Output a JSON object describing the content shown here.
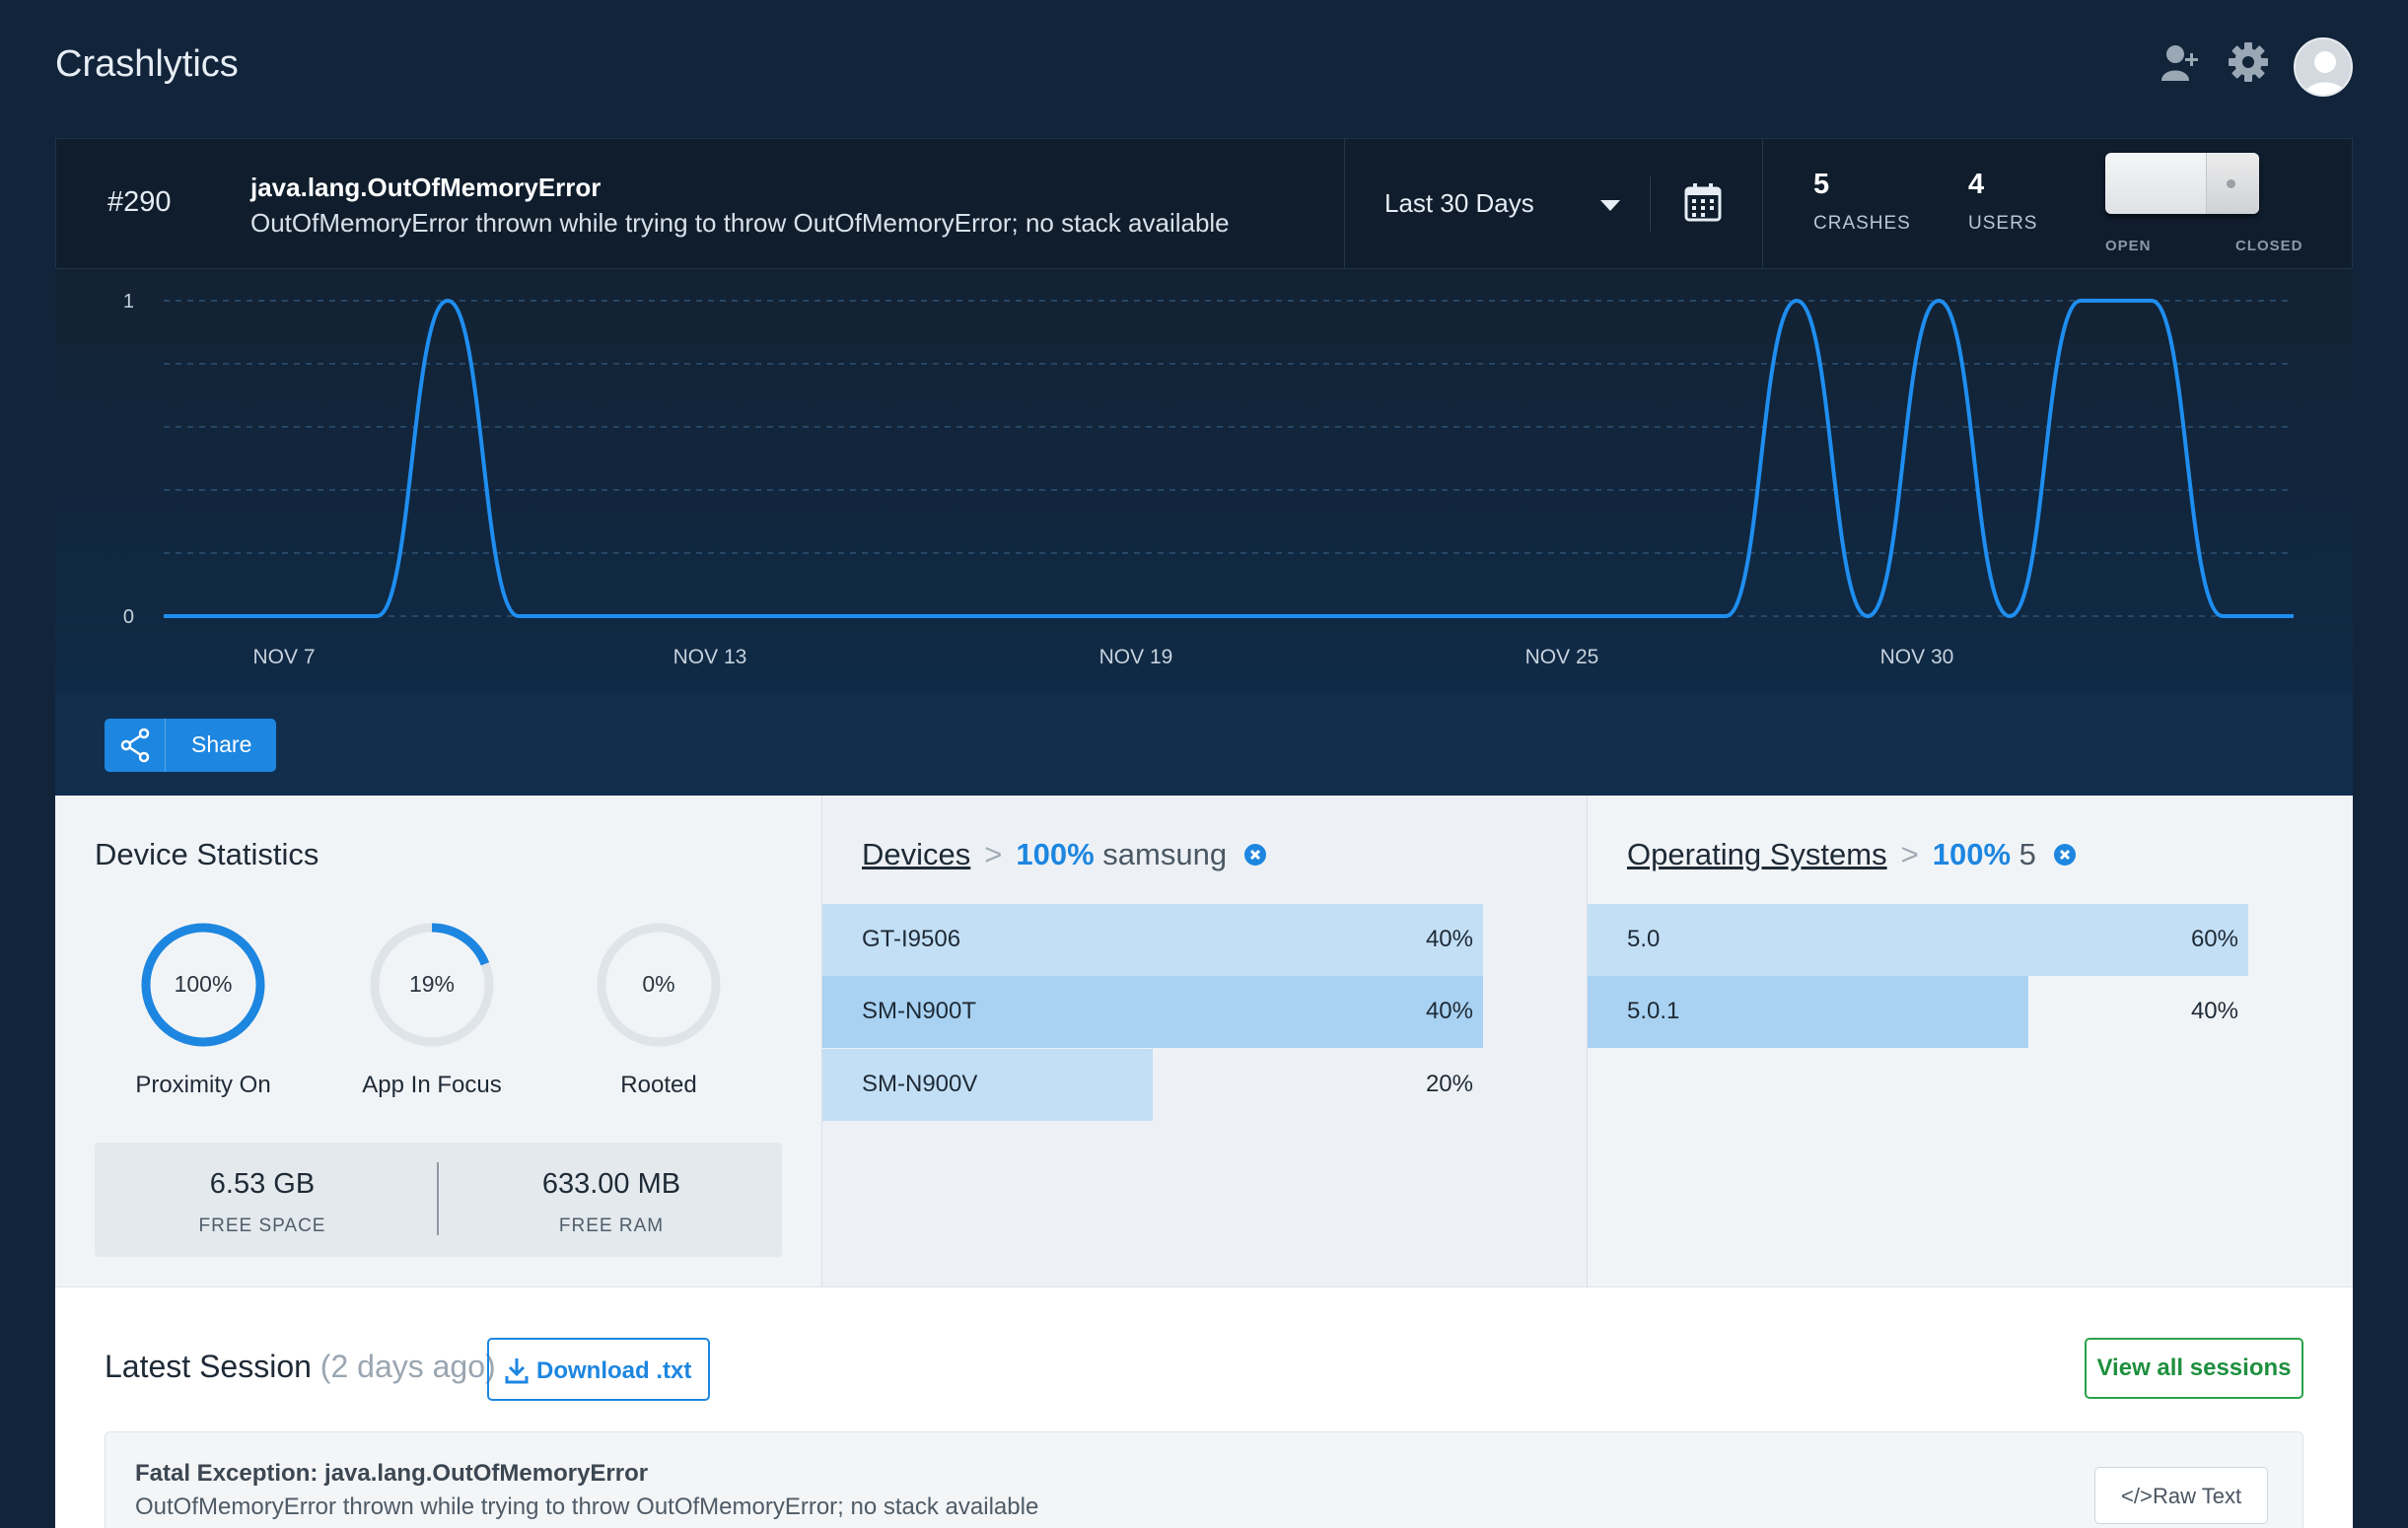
{
  "app": {
    "title": "Crashlytics"
  },
  "header_icons": [
    "add-user-icon",
    "gear-icon",
    "avatar"
  ],
  "issue": {
    "number": "#290",
    "title": "java.lang.OutOfMemoryError",
    "subtitle": "OutOfMemoryError thrown while trying to throw OutOfMemoryError; no stack available",
    "date_range": "Last 30 Days",
    "crashes_value": "5",
    "crashes_label": "CRASHES",
    "users_value": "4",
    "users_label": "USERS",
    "toggle_open_label": "OPEN",
    "toggle_closed_label": "CLOSED",
    "status_state": "closed"
  },
  "chart_data": {
    "type": "line",
    "x_ticks": [
      "NOV 7",
      "NOV 13",
      "NOV 19",
      "NOV 25",
      "NOV 30"
    ],
    "y_ticks": [
      "0",
      "1"
    ],
    "ylim": [
      0,
      1
    ],
    "grid": true,
    "series": [
      {
        "color": "#1f8ef0",
        "points": [
          [
            "Nov 5",
            0
          ],
          [
            "Nov 6",
            0
          ],
          [
            "Nov 7",
            0
          ],
          [
            "Nov 8",
            0
          ],
          [
            "Nov 9",
            1
          ],
          [
            "Nov 10",
            0
          ],
          [
            "Nov 11",
            0
          ],
          [
            "Nov 12",
            0
          ],
          [
            "Nov 13",
            0
          ],
          [
            "Nov 14",
            0
          ],
          [
            "Nov 15",
            0
          ],
          [
            "Nov 16",
            0
          ],
          [
            "Nov 17",
            0
          ],
          [
            "Nov 18",
            0
          ],
          [
            "Nov 19",
            0
          ],
          [
            "Nov 20",
            0
          ],
          [
            "Nov 21",
            0
          ],
          [
            "Nov 22",
            0
          ],
          [
            "Nov 23",
            0
          ],
          [
            "Nov 24",
            0
          ],
          [
            "Nov 25",
            0
          ],
          [
            "Nov 26",
            0
          ],
          [
            "Nov 27",
            0
          ],
          [
            "Nov 28",
            1
          ],
          [
            "Nov 29",
            0
          ],
          [
            "Nov 30",
            1
          ],
          [
            "Dec 1",
            0
          ],
          [
            "Dec 2",
            1
          ],
          [
            "Dec 3",
            1
          ],
          [
            "Dec 4",
            0
          ],
          [
            "Dec 5",
            0
          ]
        ]
      }
    ]
  },
  "share": {
    "label": "Share"
  },
  "device_stats": {
    "title": "Device Statistics",
    "rings": [
      {
        "value": "100%",
        "fraction": 1.0,
        "label": "Proximity On"
      },
      {
        "value": "19%",
        "fraction": 0.19,
        "label": "App In Focus"
      },
      {
        "value": "0%",
        "fraction": 0.0,
        "label": "Rooted"
      }
    ],
    "free_space_value": "6.53 GB",
    "free_space_label": "FREE SPACE",
    "free_ram_value": "633.00 MB",
    "free_ram_label": "FREE RAM"
  },
  "devices": {
    "title": "Devices",
    "separator": ">",
    "filter_pct": "100%",
    "filter_value": "samsung",
    "rows": [
      {
        "name": "GT-I9506",
        "pct": "40%",
        "fraction": 1.0,
        "highlight": false
      },
      {
        "name": "SM-N900T",
        "pct": "40%",
        "fraction": 1.0,
        "highlight": true
      },
      {
        "name": "SM-N900V",
        "pct": "20%",
        "fraction": 0.5,
        "highlight": false
      }
    ]
  },
  "operating_systems": {
    "title": "Operating Systems",
    "separator": ">",
    "filter_pct": "100%",
    "filter_value": "5",
    "rows": [
      {
        "name": "5.0",
        "pct": "60%",
        "fraction": 1.0,
        "highlight": false
      },
      {
        "name": "5.0.1",
        "pct": "40%",
        "fraction": 0.667,
        "highlight": true
      }
    ]
  },
  "session": {
    "title": "Latest Session",
    "ago": "(2 days ago)",
    "download_label": "Download .txt",
    "view_all_label": "View all sessions",
    "exception_title": "Fatal Exception: java.lang.OutOfMemoryError",
    "exception_sub": "OutOfMemoryError thrown while trying to throw OutOfMemoryError; no stack available",
    "raw_text_label": "Raw Text"
  },
  "colors": {
    "accent": "#1d86e0",
    "success": "#2aa34a",
    "background": "#11243a",
    "bar_light": "#c3dff5",
    "bar_highlight": "#a9d2f2"
  }
}
